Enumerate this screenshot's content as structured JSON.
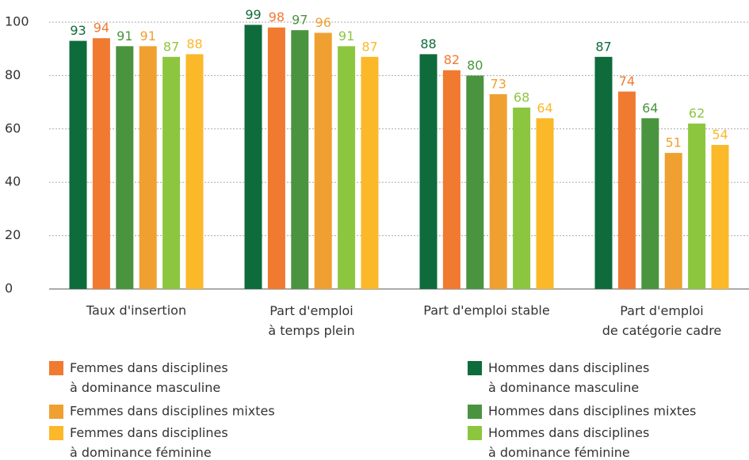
{
  "chart_data": {
    "type": "bar",
    "categories": [
      "Taux d'insertion",
      "Part d'emploi\nà temps plein",
      "Part d'emploi stable",
      "Part d'emploi\nde catégorie cadre"
    ],
    "series": [
      {
        "name": "Hommes dans disciplines\nà dominance masculine",
        "color": "#0e6b3b",
        "values": [
          93,
          99,
          88,
          87
        ]
      },
      {
        "name": "Femmes dans disciplines\nà dominance masculine",
        "color": "#f07a30",
        "values": [
          94,
          98,
          82,
          74
        ]
      },
      {
        "name": "Hommes dans disciplines mixtes",
        "color": "#4a9440",
        "values": [
          91,
          97,
          80,
          64
        ]
      },
      {
        "name": "Femmes dans disciplines mixtes",
        "color": "#f0a030",
        "values": [
          91,
          96,
          73,
          51
        ]
      },
      {
        "name": "Hommes dans disciplines\nà dominance féminine",
        "color": "#8cc63f",
        "values": [
          87,
          91,
          68,
          62
        ]
      },
      {
        "name": "Femmes dans disciplines\nà dominance féminine",
        "color": "#fbb829",
        "values": [
          88,
          87,
          64,
          54
        ]
      }
    ],
    "ylim": [
      0,
      100
    ],
    "yticks": [
      0,
      20,
      40,
      60,
      80,
      100
    ],
    "grid": true
  }
}
